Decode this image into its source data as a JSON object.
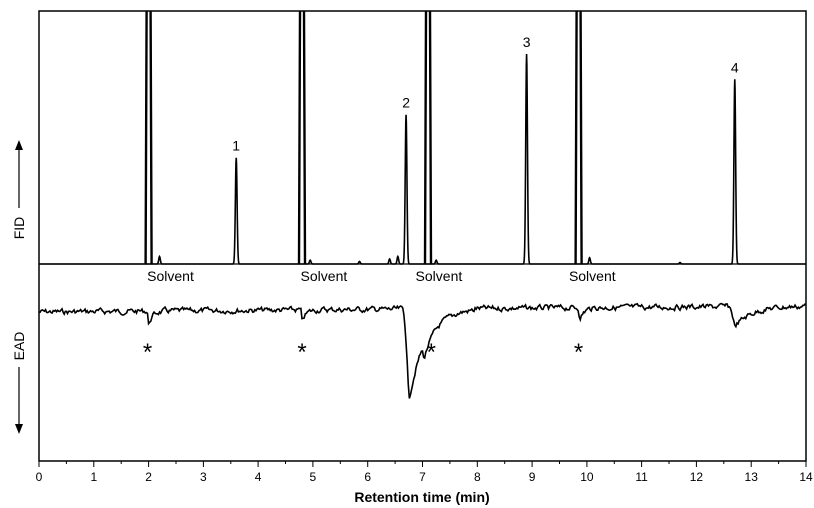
{
  "chart_data": {
    "type": "line",
    "xlabel": "Retention time (min)",
    "xlim": [
      0,
      14
    ],
    "x_ticks": [
      "0",
      "1",
      "2",
      "3",
      "4",
      "5",
      "6",
      "7",
      "8",
      "9",
      "10",
      "11",
      "12",
      "13",
      "14"
    ],
    "fid_label": "FID",
    "ead_label": "EAD",
    "solvent_label": "Solvent",
    "solvent_times": [
      2.0,
      4.8,
      7.1,
      9.85
    ],
    "solvent_label_times": [
      2.4,
      5.2,
      7.3,
      10.1
    ],
    "fid_peaks": [
      {
        "label": "1",
        "time": 3.6,
        "height": 0.42
      },
      {
        "label": "2",
        "time": 6.7,
        "height": 0.59
      },
      {
        "label": "3",
        "time": 8.9,
        "height": 0.83
      },
      {
        "label": "4",
        "time": 12.7,
        "height": 0.73
      }
    ],
    "fid_small_peaks": [
      {
        "time": 2.2,
        "height": 0.03
      },
      {
        "time": 4.95,
        "height": 0.015
      },
      {
        "time": 5.85,
        "height": 0.01
      },
      {
        "time": 6.4,
        "height": 0.02
      },
      {
        "time": 6.55,
        "height": 0.03
      },
      {
        "time": 7.25,
        "height": 0.015
      },
      {
        "time": 10.05,
        "height": 0.025
      },
      {
        "time": 11.7,
        "height": 0.006
      }
    ],
    "ead_star_label": "*",
    "ead_star_times": [
      1.98,
      4.8,
      7.16,
      9.85
    ],
    "ead_responses": [
      {
        "time": 2.0,
        "depth": 0.15,
        "width": 0.03
      },
      {
        "time": 4.8,
        "depth": 0.13,
        "width": 0.03
      },
      {
        "time": 6.75,
        "depth": 1.0,
        "width": 0.12
      },
      {
        "time": 7.03,
        "depth": 0.15,
        "width": 0.06
      },
      {
        "time": 9.87,
        "depth": 0.14,
        "width": 0.03
      },
      {
        "time": 12.7,
        "depth": 0.22,
        "width": 0.12
      }
    ]
  }
}
